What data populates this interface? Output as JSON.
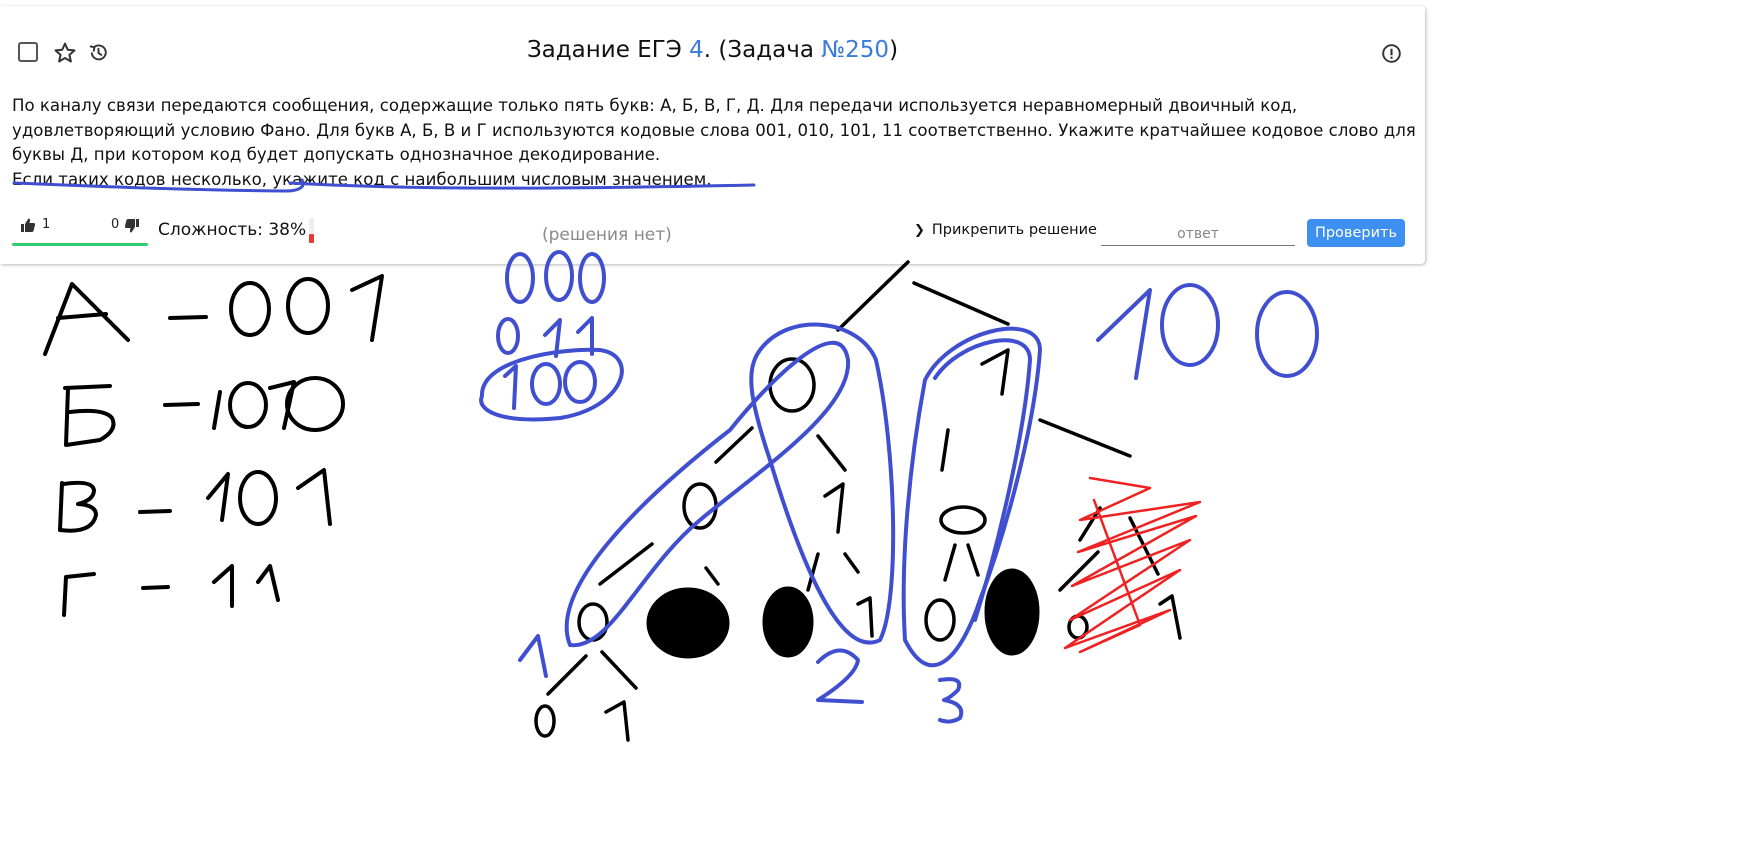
{
  "task": {
    "title_prefix": "Задание ЕГЭ ",
    "exam_task_number": "4",
    "title_mid": ". (Задача ",
    "problem_number": "№250",
    "title_suffix": ")"
  },
  "icons": {
    "favorite": "star-outline-icon",
    "history": "history-icon",
    "report": "alert-circle-icon",
    "like": "thumbs-up-icon",
    "dislike": "thumbs-down-icon"
  },
  "problem": {
    "paragraph_main": "По каналу связи передаются сообщения, содержащие только пять букв: А, Б, В, Г, Д. Для передачи используется неравномерный двоичный код, удовлетворяющий условию Фано. Для букв А, Б, В и Г используются кодовые слова 001, 010, 101, 11 соответственно. Укажите кратчайшее кодовое слово для буквы Д, при котором код будет допускать однозначное декодирование.",
    "paragraph_note": "Если таких кодов несколько, укажите код с наибольшим числовым значением."
  },
  "rating": {
    "likes": "1",
    "dislikes": "0"
  },
  "difficulty": {
    "label": "Сложность: 38%",
    "value": 0.38,
    "color": "#e53935"
  },
  "solution_status": "(решения нет)",
  "attach_solution_label": "Прикрепить решение",
  "answer_placeholder": "ответ",
  "check_button_label": "Проверить",
  "colors": {
    "accent": "#3a7bdc",
    "button": "#3d8ff0",
    "likes_bar": "#2ecc71",
    "ink_blue": "#3f4fd0",
    "ink_red": "#ee2222",
    "ink_black": "#000000"
  }
}
